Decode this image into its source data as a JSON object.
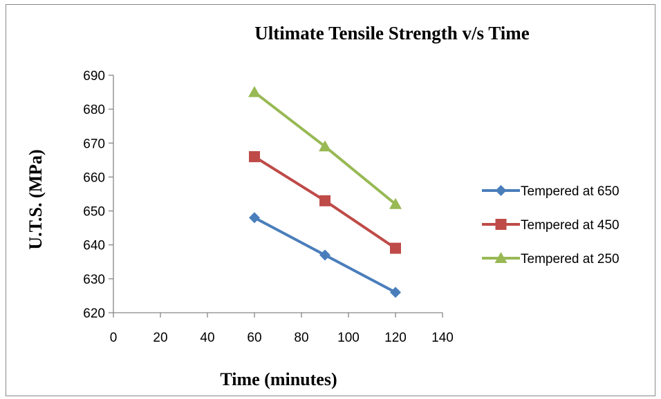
{
  "chart_data": {
    "type": "line",
    "title": "Ultimate Tensile Strength v/s Time",
    "xlabel": "Time (minutes)",
    "ylabel": "U.T.S. (MPa)",
    "xlim": [
      0,
      140
    ],
    "ylim": [
      620,
      690
    ],
    "xticks": [
      "0",
      "20",
      "40",
      "60",
      "80",
      "100",
      "120",
      "140"
    ],
    "yticks": [
      "620",
      "630",
      "640",
      "650",
      "660",
      "670",
      "680",
      "690"
    ],
    "x": [
      60,
      90,
      120
    ],
    "grid": false,
    "legend_position": "right",
    "series": [
      {
        "name": "Tempered at 650",
        "values": [
          648,
          637,
          626
        ],
        "color": "#4a7ebb",
        "marker": "diamond"
      },
      {
        "name": "Tempered at 450",
        "values": [
          666,
          653,
          639
        ],
        "color": "#be4b48",
        "marker": "square"
      },
      {
        "name": "Tempered at 250",
        "values": [
          685,
          669,
          652
        ],
        "color": "#98b954",
        "marker": "triangle"
      }
    ]
  }
}
